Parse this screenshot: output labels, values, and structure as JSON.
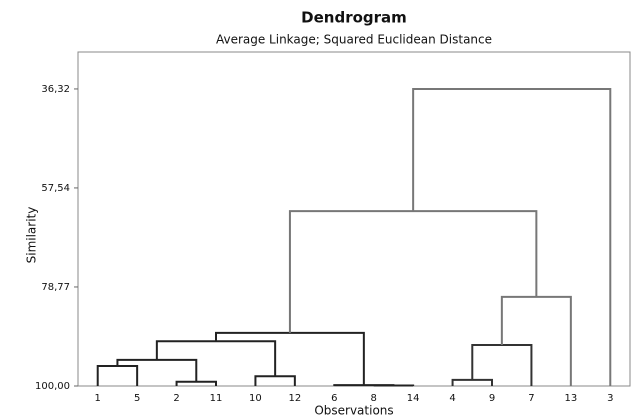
{
  "chart_data": {
    "type": "dendrogram",
    "title": "Dendrogram",
    "subtitle": "Average Linkage; Squared Euclidean Distance",
    "x_label": "Observations",
    "y_label": "Similarity",
    "categories": [
      "1",
      "5",
      "2",
      "11",
      "10",
      "12",
      "6",
      "8",
      "14",
      "4",
      "9",
      "7",
      "13",
      "3"
    ],
    "ylim": [
      100,
      28.4
    ],
    "yticks": [
      {
        "value": 36.32,
        "label": "36,32"
      },
      {
        "value": 57.54,
        "label": "57,54"
      },
      {
        "value": 78.77,
        "label": "78,77"
      },
      {
        "value": 100,
        "label": "100,00"
      }
    ],
    "merges": [
      {
        "children": [
          0,
          1
        ],
        "similarity": 95.7,
        "color": "#222222"
      },
      {
        "children": [
          2,
          3
        ],
        "similarity": 99.1,
        "color": "#222222"
      },
      {
        "children": [
          4,
          5
        ],
        "similarity": 97.9,
        "color": "#222222"
      },
      {
        "children": [
          7,
          8
        ],
        "similarity": 99.9,
        "color": "#222222"
      },
      {
        "children": [
          6,
          17
        ],
        "similarity": 99.8,
        "color": "#222222"
      },
      {
        "children": [
          9,
          10
        ],
        "similarity": 98.7,
        "color": "#333333"
      },
      {
        "children": [
          14,
          15
        ],
        "similarity": 94.4,
        "color": "#222222"
      },
      {
        "children": [
          20,
          16
        ],
        "similarity": 90.4,
        "color": "#222222"
      },
      {
        "children": [
          21,
          18
        ],
        "similarity": 88.6,
        "color": "#222222"
      },
      {
        "children": [
          19,
          11
        ],
        "similarity": 91.2,
        "color": "#333333"
      },
      {
        "children": [
          23,
          12
        ],
        "similarity": 80.9,
        "color": "#777777"
      },
      {
        "children": [
          22,
          24
        ],
        "similarity": 62.5,
        "color": "#777777"
      },
      {
        "children": [
          25,
          13
        ],
        "similarity": 36.32,
        "color": "#777777"
      }
    ]
  }
}
